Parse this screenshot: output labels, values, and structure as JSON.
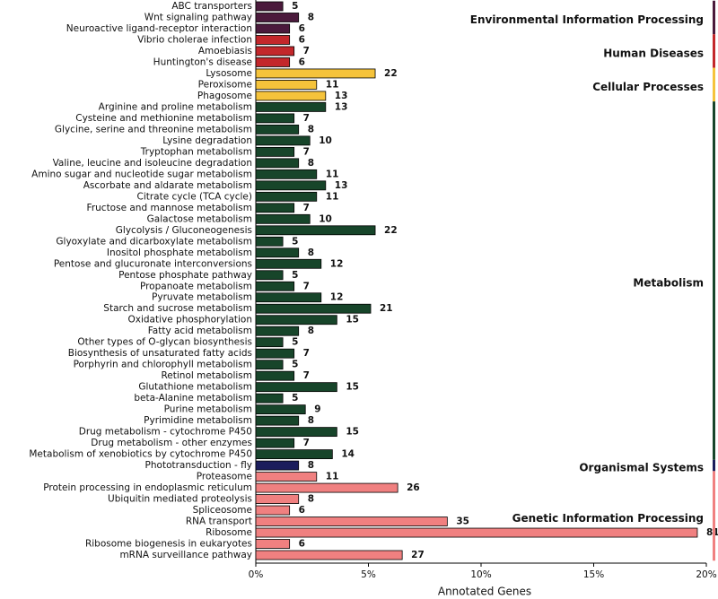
{
  "chart_data": {
    "type": "bar",
    "orientation": "horizontal",
    "xlabel": "Annotated Genes",
    "xlim": [
      0,
      20
    ],
    "xticks": [
      {
        "value": 0,
        "label": "0%"
      },
      {
        "value": 5,
        "label": "5%"
      },
      {
        "value": 10,
        "label": "10%"
      },
      {
        "value": 15,
        "label": "15%"
      },
      {
        "value": 20,
        "label": "20%"
      }
    ],
    "series": [
      {
        "name": "Environmental Information Processing",
        "color": "#4b1a3c",
        "categories": [
          "ABC transporters",
          "Wnt signaling pathway",
          "Neuroactive ligand-receptor interaction"
        ],
        "values": [
          1.2,
          1.9,
          1.5
        ],
        "gene_counts": [
          5,
          8,
          6
        ]
      },
      {
        "name": "Human Diseases",
        "color": "#c3272b",
        "categories": [
          "Vibrio cholerae infection",
          "Amoebiasis",
          "Huntington's disease"
        ],
        "values": [
          1.5,
          1.7,
          1.5
        ],
        "gene_counts": [
          6,
          7,
          6
        ]
      },
      {
        "name": "Cellular Processes",
        "color": "#f5c33b",
        "categories": [
          "Lysosome",
          "Peroxisome",
          "Phagosome"
        ],
        "values": [
          5.3,
          2.7,
          3.1
        ],
        "gene_counts": [
          22,
          11,
          13
        ]
      },
      {
        "name": "Metabolism",
        "color": "#17452a",
        "categories": [
          "Arginine and proline metabolism",
          "Cysteine and methionine metabolism",
          "Glycine, serine and threonine metabolism",
          "Lysine degradation",
          "Tryptophan metabolism",
          "Valine, leucine and isoleucine degradation",
          "Amino sugar and nucleotide sugar metabolism",
          "Ascorbate and aldarate metabolism",
          "Citrate cycle (TCA cycle)",
          "Fructose and mannose metabolism",
          "Galactose metabolism",
          "Glycolysis / Gluconeogenesis",
          "Glyoxylate and dicarboxylate metabolism",
          "Inositol phosphate metabolism",
          "Pentose and glucuronate interconversions",
          "Pentose phosphate pathway",
          "Propanoate metabolism",
          "Pyruvate metabolism",
          "Starch and sucrose metabolism",
          "Oxidative phosphorylation",
          "Fatty acid metabolism",
          "Other types of O-glycan biosynthesis",
          "Biosynthesis of unsaturated fatty acids",
          "Porphyrin and chlorophyll metabolism",
          "Retinol metabolism",
          "Glutathione metabolism",
          "beta-Alanine metabolism",
          "Purine metabolism",
          "Pyrimidine metabolism",
          "Drug metabolism - cytochrome P450",
          "Drug metabolism - other enzymes",
          "Metabolism of xenobiotics by cytochrome P450"
        ],
        "values": [
          3.1,
          1.7,
          1.9,
          2.4,
          1.7,
          1.9,
          2.7,
          3.1,
          2.7,
          1.7,
          2.4,
          5.3,
          1.2,
          1.9,
          2.9,
          1.2,
          1.7,
          2.9,
          5.1,
          3.6,
          1.9,
          1.2,
          1.7,
          1.2,
          1.7,
          3.6,
          1.2,
          2.2,
          1.9,
          3.6,
          1.7,
          3.4
        ],
        "gene_counts": [
          13,
          7,
          8,
          10,
          7,
          8,
          11,
          13,
          11,
          7,
          10,
          22,
          5,
          8,
          12,
          5,
          7,
          12,
          21,
          15,
          8,
          5,
          7,
          5,
          7,
          15,
          5,
          9,
          8,
          15,
          7,
          14
        ]
      },
      {
        "name": "Organismal Systems",
        "color": "#1b1d5c",
        "categories": [
          "Phototransduction - fly"
        ],
        "values": [
          1.9
        ],
        "gene_counts": [
          8
        ]
      },
      {
        "name": "Genetic Information Processing",
        "color": "#f08080",
        "categories": [
          "Proteasome",
          "Protein processing in endoplasmic reticulum",
          "Ubiquitin mediated proteolysis",
          "Spliceosome",
          "RNA transport",
          "Ribosome",
          "Ribosome biogenesis in eukaryotes",
          "mRNA surveillance pathway"
        ],
        "values": [
          2.7,
          6.3,
          1.9,
          1.5,
          8.5,
          19.6,
          1.5,
          6.5
        ],
        "gene_counts": [
          11,
          26,
          8,
          6,
          35,
          81,
          6,
          27
        ]
      }
    ]
  }
}
